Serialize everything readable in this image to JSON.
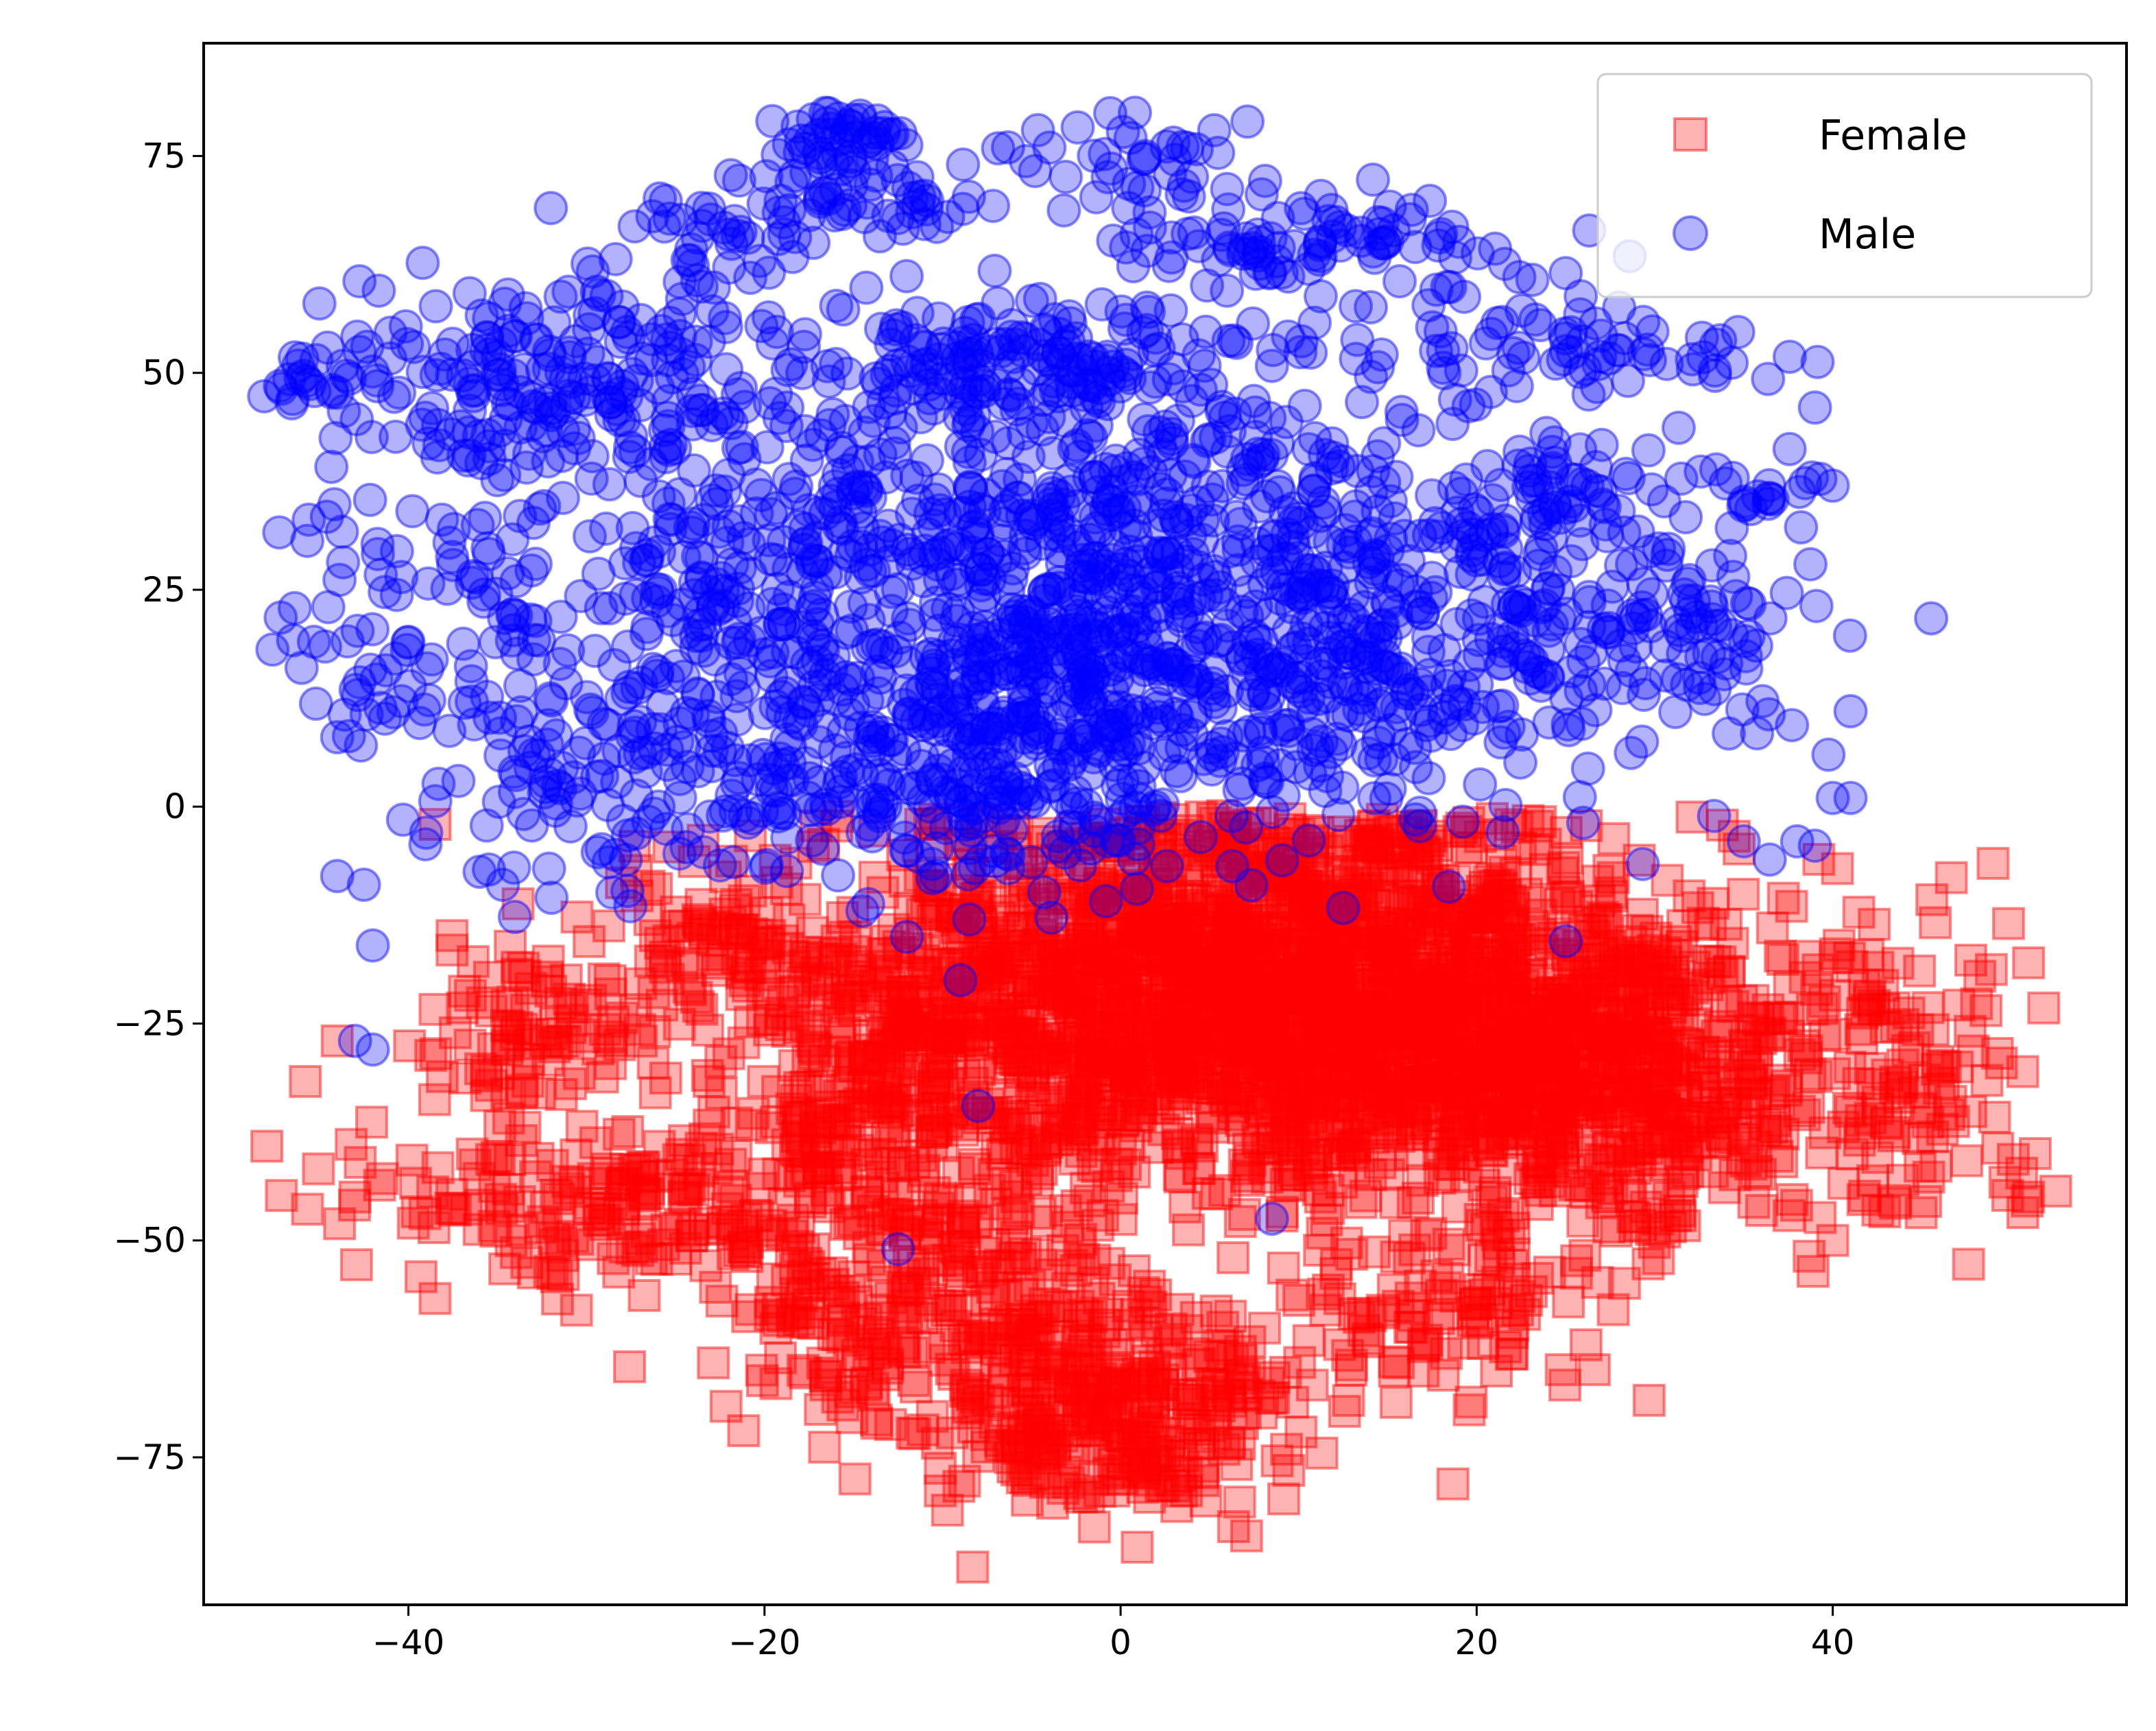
{
  "chart_data": {
    "type": "scatter",
    "title": "",
    "xlabel": "",
    "ylabel": "",
    "xlim": [
      -51.5,
      56.5
    ],
    "ylim": [
      -92,
      88
    ],
    "x_ticks": [
      -40,
      -20,
      0,
      20,
      40
    ],
    "y_ticks": [
      -75,
      -50,
      -25,
      0,
      25,
      50,
      75
    ],
    "x_tick_labels": [
      "−40",
      "−20",
      "0",
      "20",
      "40"
    ],
    "y_tick_labels": [
      "−75",
      "−50",
      "−25",
      "0",
      "25",
      "50",
      "75"
    ],
    "grid": false,
    "legend_position": "top-right",
    "series": [
      {
        "name": "Female",
        "marker": "square",
        "color": "#ff0000",
        "alpha": 0.3,
        "clusters": [
          {
            "cx": 8,
            "cy": -22,
            "sx": 13,
            "sy": 11,
            "n": 2200
          },
          {
            "cx": 27,
            "cy": -32,
            "sx": 7,
            "sy": 9,
            "n": 550
          },
          {
            "cx": 0,
            "cy": -70,
            "sx": 5,
            "sy": 6,
            "n": 300
          },
          {
            "cx": -10,
            "cy": -58,
            "sx": 6,
            "sy": 7,
            "n": 260
          },
          {
            "cx": -28,
            "cy": -46,
            "sx": 8,
            "sy": 5,
            "n": 200
          },
          {
            "cx": -33,
            "cy": -24,
            "sx": 3,
            "sy": 5,
            "n": 90
          },
          {
            "cx": -13,
            "cy": -32,
            "sx": 5,
            "sy": 10,
            "n": 220
          },
          {
            "cx": 45,
            "cy": -32,
            "sx": 4,
            "sy": 8,
            "n": 90
          },
          {
            "cx": 18,
            "cy": -58,
            "sx": 5,
            "sy": 5,
            "n": 100
          },
          {
            "cx": -22,
            "cy": -15,
            "sx": 3,
            "sy": 4,
            "n": 60
          }
        ],
        "points": [
          [
            -38.5,
            3.5
          ],
          [
            -44,
            -27
          ],
          [
            -43,
            -45
          ],
          [
            47,
            -30
          ],
          [
            51,
            -18
          ],
          [
            51,
            -45
          ],
          [
            40,
            -50
          ]
        ]
      },
      {
        "name": "Male",
        "marker": "circle",
        "color": "#0000ff",
        "alpha": 0.3,
        "clusters": [
          {
            "cx": -3,
            "cy": 17,
            "sx": 13,
            "sy": 10,
            "n": 900
          },
          {
            "cx": -30,
            "cy": 50,
            "sx": 5,
            "sy": 6,
            "n": 160
          },
          {
            "cx": -16,
            "cy": 77,
            "sx": 2,
            "sy": 2,
            "n": 45
          },
          {
            "cx": -13,
            "cy": 70,
            "sx": 3,
            "sy": 2,
            "n": 45
          },
          {
            "cx": -22,
            "cy": 66,
            "sx": 3,
            "sy": 3,
            "n": 40
          },
          {
            "cx": 2,
            "cy": 75,
            "sx": 4,
            "sy": 3,
            "n": 40
          },
          {
            "cx": 10,
            "cy": 65,
            "sx": 6,
            "sy": 3,
            "n": 90
          },
          {
            "cx": -3,
            "cy": 52,
            "sx": 6,
            "sy": 4,
            "n": 120
          },
          {
            "cx": 0,
            "cy": 37,
            "sx": 9,
            "sy": 6,
            "n": 200
          },
          {
            "cx": 20,
            "cy": 20,
            "sx": 8,
            "sy": 10,
            "n": 230
          },
          {
            "cx": -40,
            "cy": 48,
            "sx": 5,
            "sy": 5,
            "n": 70
          },
          {
            "cx": -38,
            "cy": 25,
            "sx": 5,
            "sy": 10,
            "n": 90
          },
          {
            "cx": -30,
            "cy": 5,
            "sx": 6,
            "sy": 7,
            "n": 110
          },
          {
            "cx": -20,
            "cy": 30,
            "sx": 5,
            "sy": 10,
            "n": 130
          },
          {
            "cx": 24,
            "cy": 36,
            "sx": 3,
            "sy": 3,
            "n": 40
          },
          {
            "cx": 30,
            "cy": 52,
            "sx": 3,
            "sy": 2,
            "n": 35
          },
          {
            "cx": 32,
            "cy": 20,
            "sx": 3,
            "sy": 5,
            "n": 40
          },
          {
            "cx": 36,
            "cy": 37,
            "sx": 2,
            "sy": 2,
            "n": 20
          },
          {
            "cx": 20,
            "cy": 55,
            "sx": 4,
            "sy": 5,
            "n": 45
          },
          {
            "cx": -12,
            "cy": 50,
            "sx": 4,
            "sy": 4,
            "n": 60
          },
          {
            "cx": -10,
            "cy": 0,
            "sx": 7,
            "sy": 5,
            "n": 130
          }
        ],
        "points": [
          [
            -46.5,
            47
          ],
          [
            -46,
            16
          ],
          [
            -45,
            58
          ],
          [
            -44.5,
            23
          ],
          [
            -44,
            8
          ],
          [
            -43,
            -27
          ],
          [
            -42,
            -28
          ],
          [
            -42,
            -16
          ],
          [
            -44,
            -8
          ],
          [
            -42.5,
            -9
          ],
          [
            -40,
            19
          ],
          [
            -36,
            -7.5
          ],
          [
            -39,
            -3
          ],
          [
            -12.5,
            -51
          ],
          [
            8.5,
            -47.5
          ],
          [
            -8,
            -34.5
          ],
          [
            -9,
            -20
          ],
          [
            -12,
            -15
          ],
          [
            25,
            -15.5
          ],
          [
            4.5,
            -3.5
          ],
          [
            39,
            46
          ],
          [
            40,
            37
          ],
          [
            40,
            1
          ],
          [
            38,
            -4
          ],
          [
            39,
            -4.5
          ],
          [
            41,
            11
          ],
          [
            41,
            1
          ],
          [
            25,
            61.5
          ],
          [
            18,
            66
          ],
          [
            35,
            -4
          ],
          [
            -32,
            69
          ],
          [
            -14.5,
            -12
          ],
          [
            -8.5,
            -13
          ]
        ]
      }
    ]
  }
}
